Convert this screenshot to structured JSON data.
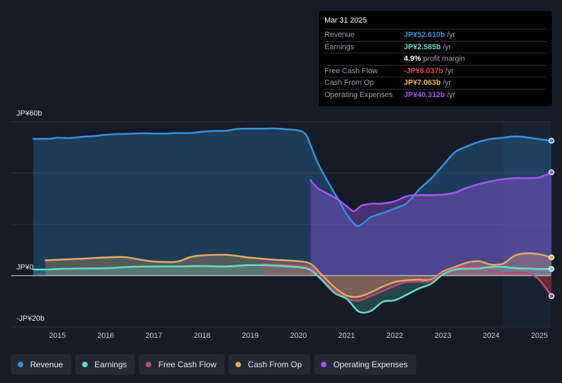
{
  "tooltip": {
    "date": "Mar 31 2025",
    "rows": [
      {
        "label": "Revenue",
        "value": "JP¥52.610b",
        "unit": "/yr",
        "color": "#2f93e0"
      },
      {
        "label": "Earnings",
        "value": "JP¥2.585b",
        "unit": "/yr",
        "color": "#5ce0c8"
      },
      {
        "label": "",
        "value": "4.9%",
        "unit": "profit margin",
        "color": "#ffffff"
      },
      {
        "label": "Free Cash Flow",
        "value": "-JP¥8.037b",
        "unit": "/yr",
        "color": "#e8464f"
      },
      {
        "label": "Cash From Op",
        "value": "JP¥7.063b",
        "unit": "/yr",
        "color": "#f0b45a"
      },
      {
        "label": "Operating Expenses",
        "value": "JP¥40.312b",
        "unit": "/yr",
        "color": "#a855f7"
      }
    ]
  },
  "legend": [
    {
      "label": "Revenue",
      "color": "#2f93e0"
    },
    {
      "label": "Earnings",
      "color": "#5ce0c8"
    },
    {
      "label": "Free Cash Flow",
      "color": "#c2457d"
    },
    {
      "label": "Cash From Op",
      "color": "#e9a95a"
    },
    {
      "label": "Operating Expenses",
      "color": "#a855f7"
    }
  ],
  "chart_data": {
    "type": "area",
    "title": "",
    "unit": "JP¥ billions",
    "y_tick_labels": [
      "JP¥60b",
      "JP¥0",
      "-JP¥20b"
    ],
    "ylim": [
      -20,
      60
    ],
    "xlim": [
      2014.5,
      2025.25
    ],
    "x_tick_labels": [
      "2015",
      "2016",
      "2017",
      "2018",
      "2019",
      "2020",
      "2021",
      "2022",
      "2023",
      "2024",
      "2025"
    ],
    "series": [
      {
        "name": "Revenue",
        "color": "#2f93e0",
        "x": [
          2014.5,
          2014.85,
          2015.0,
          2015.25,
          2015.5,
          2015.75,
          2016.0,
          2016.25,
          2016.5,
          2016.75,
          2017.0,
          2017.25,
          2017.5,
          2017.75,
          2018.0,
          2018.25,
          2018.5,
          2018.75,
          2019.0,
          2019.25,
          2019.5,
          2019.75,
          2020.0,
          2020.15,
          2020.25,
          2020.4,
          2020.6,
          2020.8,
          2021.0,
          2021.2,
          2021.35,
          2021.5,
          2021.75,
          2022.0,
          2022.25,
          2022.5,
          2022.75,
          2023.0,
          2023.25,
          2023.5,
          2023.75,
          2024.0,
          2024.25,
          2024.5,
          2024.75,
          2025.0,
          2025.25
        ],
        "values": [
          53.3,
          53.4,
          53.8,
          53.6,
          54.1,
          54.4,
          54.9,
          55.2,
          55.3,
          55.5,
          55.4,
          55.4,
          55.6,
          55.6,
          56.1,
          56.4,
          56.5,
          57.2,
          57.3,
          57.3,
          57.4,
          57.1,
          56.6,
          55.1,
          51.0,
          44.0,
          37.0,
          30.5,
          24.0,
          19.5,
          20.5,
          22.8,
          24.4,
          26.2,
          28.3,
          33.5,
          37.8,
          43.0,
          48.2,
          50.4,
          52.2,
          53.3,
          53.8,
          54.3,
          53.9,
          53.2,
          52.6
        ]
      },
      {
        "name": "Operating Expenses",
        "color": "#a855f7",
        "x": [
          2020.25,
          2020.4,
          2020.6,
          2020.8,
          2021.0,
          2021.15,
          2021.3,
          2021.5,
          2021.75,
          2022.0,
          2022.25,
          2022.5,
          2022.75,
          2023.0,
          2023.25,
          2023.5,
          2023.75,
          2024.0,
          2024.25,
          2024.5,
          2024.75,
          2025.0,
          2025.25
        ],
        "values": [
          37.2,
          34.1,
          32.0,
          29.9,
          27.1,
          25.1,
          27.2,
          28.0,
          28.1,
          29.0,
          31.0,
          31.4,
          31.4,
          31.6,
          32.4,
          34.3,
          35.7,
          36.8,
          37.6,
          38.0,
          38.0,
          38.3,
          40.3
        ]
      },
      {
        "name": "Cash From Op",
        "color": "#e9a95a",
        "x": [
          2014.75,
          2015.0,
          2015.5,
          2016.0,
          2016.4,
          2016.75,
          2017.0,
          2017.25,
          2017.5,
          2017.75,
          2018.0,
          2018.5,
          2018.75,
          2019.0,
          2019.5,
          2020.0,
          2020.25,
          2020.5,
          2020.75,
          2021.0,
          2021.25,
          2021.5,
          2021.75,
          2022.0,
          2022.25,
          2022.5,
          2022.75,
          2023.0,
          2023.25,
          2023.5,
          2023.75,
          2024.0,
          2024.25,
          2024.5,
          2024.75,
          2025.0,
          2025.25
        ],
        "values": [
          6.0,
          6.2,
          6.6,
          7.1,
          7.2,
          6.1,
          5.5,
          5.3,
          5.5,
          7.2,
          7.9,
          8.1,
          7.6,
          7.0,
          6.2,
          5.6,
          4.6,
          0.0,
          -4.6,
          -7.8,
          -8.2,
          -6.5,
          -4.3,
          -2.5,
          -1.8,
          -1.6,
          -1.6,
          1.6,
          3.4,
          5.1,
          5.6,
          4.3,
          4.7,
          7.9,
          8.7,
          8.3,
          7.1
        ]
      },
      {
        "name": "Free Cash Flow",
        "color": "#c2457d",
        "x": [
          2019.25,
          2019.75,
          2020.0,
          2020.25,
          2020.5,
          2020.75,
          2021.0,
          2021.25,
          2021.5,
          2021.75,
          2022.0,
          2022.25,
          2022.5,
          2022.75,
          2023.0,
          2023.25,
          2023.5,
          2023.75,
          2024.0,
          2024.25,
          2024.5,
          2024.75,
          2025.0,
          2025.25
        ],
        "values": [
          4.5,
          4.3,
          4.0,
          3.2,
          -1.5,
          -5.8,
          -9.0,
          -9.7,
          -8.0,
          -6.0,
          -4.0,
          -2.5,
          -2.4,
          -2.0,
          1.0,
          2.8,
          3.3,
          3.5,
          1.8,
          1.0,
          1.2,
          1.0,
          -1.7,
          -8.0
        ]
      },
      {
        "name": "Earnings",
        "color": "#5ce0c8",
        "x": [
          2014.5,
          2014.85,
          2015.0,
          2015.5,
          2016.0,
          2016.5,
          2017.0,
          2017.5,
          2018.0,
          2018.5,
          2019.0,
          2019.5,
          2020.0,
          2020.25,
          2020.5,
          2020.75,
          2021.0,
          2021.25,
          2021.5,
          2021.75,
          2022.0,
          2022.25,
          2022.5,
          2022.75,
          2023.0,
          2023.25,
          2023.5,
          2023.75,
          2024.0,
          2024.25,
          2024.5,
          2024.75,
          2025.0,
          2025.25
        ],
        "values": [
          2.4,
          2.4,
          2.6,
          2.8,
          2.9,
          3.4,
          3.6,
          3.6,
          3.7,
          3.6,
          4.1,
          3.9,
          3.3,
          2.2,
          -2.0,
          -6.8,
          -9.0,
          -14.0,
          -13.8,
          -10.2,
          -9.6,
          -7.4,
          -5.0,
          -3.2,
          0.5,
          2.4,
          2.7,
          2.8,
          3.4,
          3.4,
          2.9,
          2.8,
          2.6,
          2.6
        ]
      }
    ]
  }
}
